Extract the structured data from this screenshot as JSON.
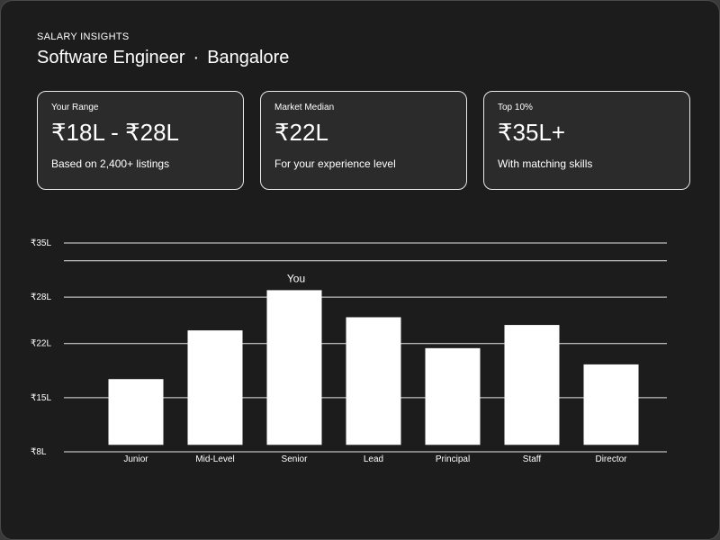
{
  "header": {
    "eyebrow": "SALARY INSIGHTS",
    "role": "Software Engineer",
    "separator": "·",
    "location": "Bangalore"
  },
  "stats": [
    {
      "label": "Your Range",
      "value": "₹18L - ₹28L",
      "note": "Based on 2,400+ listings"
    },
    {
      "label": "Market Median",
      "value": "₹22L",
      "note": "For your experience level"
    },
    {
      "label": "Top 10%",
      "value": "₹35L+",
      "note": "With matching skills"
    }
  ],
  "chart_data": {
    "type": "bar",
    "categories": [
      "Junior",
      "Mid-Level",
      "Senior",
      "Lead",
      "Principal",
      "Staff",
      "Director"
    ],
    "values": [
      17.4,
      23.7,
      28.9,
      25.4,
      21.4,
      24.4,
      19.3
    ],
    "baseline": 8.9,
    "ylim": [
      8,
      35
    ],
    "yticks": [
      8,
      15,
      22,
      28,
      35
    ],
    "ytick_labels": [
      "₹8L",
      "₹15L",
      "₹22L",
      "₹28L",
      "₹35L"
    ],
    "reference_line": 32.7,
    "annotation": {
      "category": "Senior",
      "text": "You"
    },
    "grid": true,
    "bar_color": "#ffffff"
  }
}
